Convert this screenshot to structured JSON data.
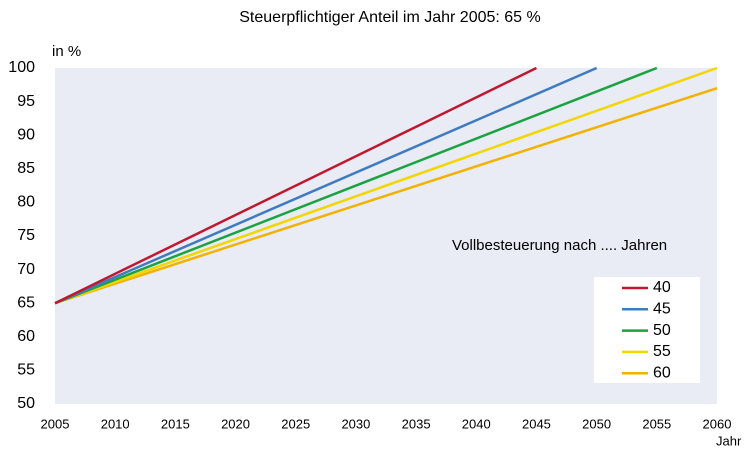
{
  "chart_data": {
    "type": "line",
    "title": "Steuerpflichtiger Anteil im Jahr 2005: 65 %",
    "y_label": "in %",
    "x_label": "Jahr",
    "legend_title": "Vollbesteuerung nach .... Jahren",
    "series": [
      {
        "name": "40",
        "color": "#c0182e",
        "x": [
          2005,
          2045
        ],
        "values": [
          65,
          100
        ]
      },
      {
        "name": "45",
        "color": "#3f7cbf",
        "x": [
          2005,
          2050
        ],
        "values": [
          65,
          100
        ]
      },
      {
        "name": "50",
        "color": "#1aa340",
        "x": [
          2005,
          2055
        ],
        "values": [
          65,
          100
        ]
      },
      {
        "name": "55",
        "color": "#f2d600",
        "x": [
          2005,
          2060
        ],
        "values": [
          65,
          100
        ]
      },
      {
        "name": "60",
        "color": "#f2b200",
        "x": [
          2005,
          2060
        ],
        "values": [
          65,
          97
        ]
      }
    ],
    "xlim": [
      2005,
      2060
    ],
    "xticks": [
      2005,
      2010,
      2015,
      2020,
      2025,
      2030,
      2035,
      2040,
      2045,
      2050,
      2055,
      2060
    ],
    "ylim": [
      50,
      100
    ],
    "yticks": [
      50,
      55,
      60,
      65,
      70,
      75,
      80,
      85,
      90,
      95,
      100
    ],
    "grid": false
  }
}
